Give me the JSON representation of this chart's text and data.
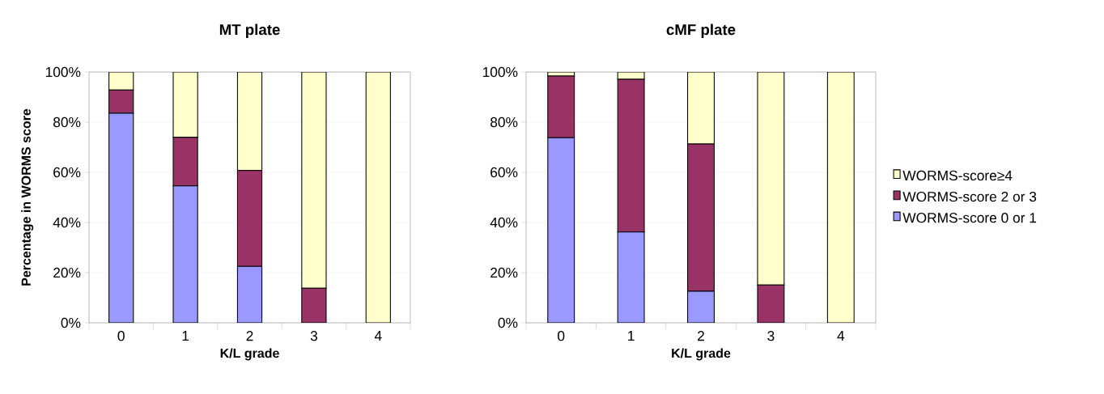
{
  "chart_data": [
    {
      "type": "bar",
      "title": "MT plate",
      "xlabel": "K/L grade",
      "ylabel": "Percentage in WORMS score",
      "categories": [
        "0",
        "1",
        "2",
        "3",
        "4"
      ],
      "stacked": true,
      "grid": "y",
      "ylim": [
        0,
        100
      ],
      "yticks": [
        {
          "value": 0,
          "label": "0%"
        },
        {
          "value": 20,
          "label": "20%"
        },
        {
          "value": 40,
          "label": "40%"
        },
        {
          "value": 60,
          "label": "60%"
        },
        {
          "value": 80,
          "label": "80%"
        },
        {
          "value": 100,
          "label": "100%"
        }
      ],
      "series": [
        {
          "color": "#9999ff",
          "values": [
            83.6,
            54.6,
            22.5,
            0,
            0
          ]
        },
        {
          "color": "#993366",
          "values": [
            9.2,
            19.4,
            38.2,
            13.8,
            0
          ]
        },
        {
          "color": "#ffffcc",
          "values": [
            7.2,
            26.0,
            39.3,
            86.2,
            100
          ]
        }
      ]
    },
    {
      "type": "bar",
      "title": "cMF plate",
      "xlabel": "K/L grade",
      "categories": [
        "0",
        "1",
        "2",
        "3",
        "4"
      ],
      "stacked": true,
      "grid": "y",
      "legend": "right",
      "ylim": [
        0,
        100
      ],
      "yticks": [
        {
          "value": 0,
          "label": "0%"
        },
        {
          "value": 20,
          "label": "20%"
        },
        {
          "value": 40,
          "label": "40%"
        },
        {
          "value": 60,
          "label": "60%"
        },
        {
          "value": 80,
          "label": "80%"
        },
        {
          "value": 100,
          "label": "100%"
        }
      ],
      "series": [
        {
          "name": "WORMS-score 0 or 1",
          "color": "#9999ff",
          "values": [
            73.8,
            36.2,
            12.6,
            0,
            0
          ]
        },
        {
          "name": "WORMS-score 2 or 3",
          "color": "#993366",
          "values": [
            24.6,
            60.9,
            58.7,
            15.1,
            0
          ]
        },
        {
          "name": "WORMS-score≥4",
          "color": "#ffffcc",
          "values": [
            1.6,
            2.9,
            28.7,
            84.9,
            100
          ]
        }
      ]
    }
  ]
}
